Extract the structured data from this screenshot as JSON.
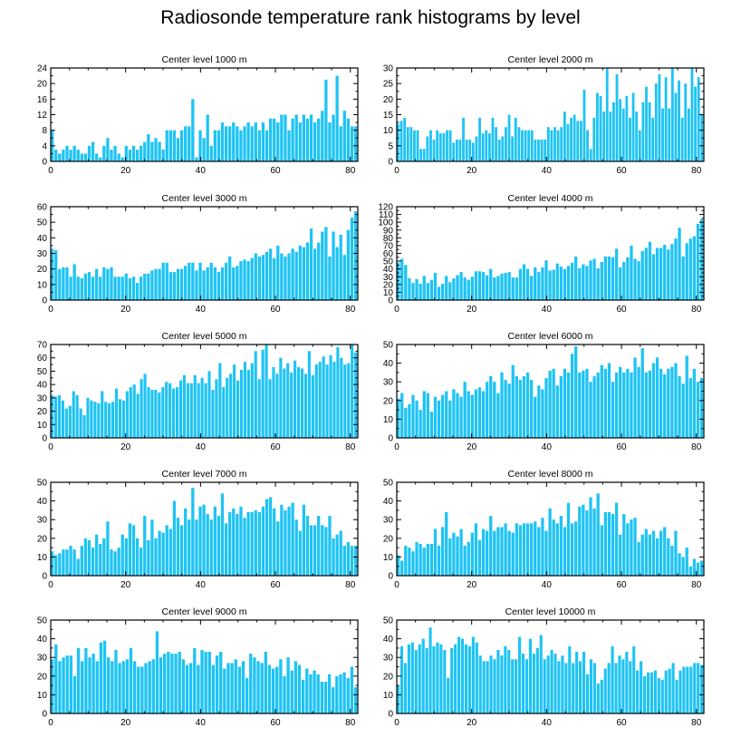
{
  "title": "Radiosonde temperature rank histograms by level",
  "colors": {
    "bar": "#1EC3F5",
    "axis": "#000000",
    "background": "#FFFFFF"
  },
  "chart_data": [
    {
      "type": "bar",
      "title": "Center level 1000 m",
      "xlim": [
        0,
        82
      ],
      "ylim": [
        0,
        24
      ],
      "xticks": [
        0,
        20,
        40,
        60,
        80
      ],
      "yticks": [
        0,
        4,
        8,
        12,
        16,
        20,
        24
      ],
      "values": [
        8,
        3,
        2,
        3,
        4,
        3,
        4,
        3,
        2,
        2,
        4,
        5,
        2,
        1,
        4,
        6,
        3,
        4,
        2,
        1,
        4,
        3,
        4,
        3,
        4,
        5,
        7,
        5,
        6,
        5,
        3,
        8,
        8,
        8,
        6,
        8,
        9,
        9,
        16,
        1,
        8,
        6,
        12,
        4,
        8,
        8,
        10,
        9,
        9,
        10,
        9,
        8,
        9,
        10,
        9,
        10,
        8,
        10,
        8,
        11,
        11,
        10,
        12,
        12,
        8,
        11,
        12,
        10,
        12,
        11,
        12,
        10,
        11,
        13,
        21,
        10,
        12,
        22,
        9,
        13,
        11,
        9,
        9
      ]
    },
    {
      "type": "bar",
      "title": "Center level 2000 m",
      "xlim": [
        0,
        82
      ],
      "ylim": [
        0,
        30
      ],
      "xticks": [
        0,
        20,
        40,
        60,
        80
      ],
      "yticks": [
        0,
        5,
        10,
        15,
        20,
        25,
        30
      ],
      "values": [
        12,
        13,
        14,
        11,
        11,
        10,
        10,
        4,
        4,
        8,
        10,
        7,
        10,
        9,
        9,
        10,
        10,
        6,
        7,
        7,
        14,
        7,
        7,
        6,
        8,
        14,
        9,
        10,
        9,
        14,
        11,
        7,
        8,
        11,
        15,
        8,
        14,
        11,
        10,
        10,
        10,
        10,
        7,
        7,
        7,
        7,
        11,
        10,
        11,
        10,
        11,
        16,
        12,
        14,
        15,
        13,
        13,
        23,
        10,
        4,
        14,
        22,
        21,
        16,
        30,
        16,
        19,
        28,
        20,
        17,
        21,
        14,
        22,
        16,
        10,
        19,
        24,
        19,
        14,
        25,
        28,
        17,
        27,
        17,
        30,
        22,
        26,
        14,
        25,
        17,
        30,
        24,
        27,
        15
      ]
    },
    {
      "type": "bar",
      "title": "Center level 3000 m",
      "xlim": [
        0,
        82
      ],
      "ylim": [
        0,
        60
      ],
      "xticks": [
        0,
        20,
        40,
        60,
        80
      ],
      "yticks": [
        0,
        10,
        20,
        30,
        40,
        50,
        60
      ],
      "values": [
        33,
        32,
        20,
        21,
        21,
        15,
        23,
        15,
        14,
        17,
        18,
        15,
        20,
        15,
        21,
        20,
        21,
        15,
        15,
        15,
        17,
        14,
        15,
        11,
        15,
        17,
        17,
        19,
        20,
        20,
        24,
        24,
        18,
        18,
        20,
        20,
        22,
        24,
        24,
        19,
        24,
        19,
        21,
        24,
        21,
        18,
        21,
        24,
        28,
        21,
        22,
        25,
        26,
        25,
        27,
        30,
        28,
        29,
        31,
        33,
        27,
        35,
        30,
        28,
        30,
        33,
        31,
        35,
        34,
        37,
        46,
        33,
        37,
        44,
        47,
        28,
        44,
        34,
        42,
        29,
        45,
        53,
        57
      ]
    },
    {
      "type": "bar",
      "title": "Center level 4000 m",
      "xlim": [
        0,
        82
      ],
      "ylim": [
        0,
        120
      ],
      "xticks": [
        0,
        20,
        40,
        60,
        80
      ],
      "yticks": [
        0,
        10,
        20,
        30,
        40,
        50,
        60,
        70,
        80,
        90,
        100,
        110,
        120
      ],
      "values": [
        48,
        53,
        45,
        28,
        22,
        27,
        21,
        31,
        22,
        26,
        35,
        17,
        21,
        31,
        23,
        28,
        32,
        36,
        29,
        26,
        30,
        37,
        37,
        36,
        32,
        40,
        29,
        31,
        34,
        35,
        36,
        29,
        29,
        40,
        46,
        40,
        31,
        42,
        36,
        42,
        51,
        38,
        39,
        47,
        43,
        40,
        44,
        48,
        56,
        41,
        46,
        44,
        51,
        53,
        41,
        49,
        56,
        56,
        55,
        66,
        42,
        49,
        55,
        70,
        53,
        50,
        63,
        67,
        75,
        59,
        67,
        67,
        71,
        65,
        72,
        79,
        93,
        56,
        73,
        79,
        82,
        98,
        104
      ]
    },
    {
      "type": "bar",
      "title": "Center level 5000 m",
      "xlim": [
        0,
        82
      ],
      "ylim": [
        0,
        70
      ],
      "xticks": [
        0,
        20,
        40,
        60,
        80
      ],
      "yticks": [
        0,
        10,
        20,
        30,
        40,
        50,
        60,
        70
      ],
      "values": [
        32,
        31,
        32,
        28,
        22,
        24,
        35,
        32,
        22,
        17,
        30,
        28,
        27,
        26,
        35,
        27,
        26,
        27,
        37,
        29,
        28,
        35,
        38,
        40,
        33,
        44,
        48,
        38,
        36,
        36,
        34,
        38,
        42,
        41,
        37,
        38,
        43,
        47,
        41,
        41,
        47,
        41,
        45,
        41,
        50,
        36,
        44,
        56,
        38,
        45,
        48,
        55,
        43,
        51,
        57,
        51,
        56,
        65,
        44,
        66,
        70,
        44,
        53,
        48,
        60,
        52,
        56,
        49,
        58,
        53,
        52,
        48,
        65,
        47,
        55,
        57,
        61,
        55,
        62,
        57,
        68,
        60,
        55,
        56,
        70,
        64
      ]
    },
    {
      "type": "bar",
      "title": "Center level 6000 m",
      "xlim": [
        0,
        82
      ],
      "ylim": [
        0,
        50
      ],
      "xticks": [
        0,
        20,
        40,
        60,
        80
      ],
      "yticks": [
        0,
        10,
        20,
        30,
        40,
        50
      ],
      "values": [
        21,
        24,
        16,
        18,
        23,
        20,
        15,
        25,
        24,
        14,
        22,
        20,
        23,
        25,
        20,
        26,
        24,
        22,
        30,
        25,
        23,
        26,
        27,
        25,
        30,
        33,
        30,
        24,
        35,
        31,
        29,
        39,
        33,
        31,
        33,
        35,
        31,
        22,
        28,
        26,
        32,
        36,
        37,
        28,
        33,
        37,
        35,
        45,
        49,
        35,
        36,
        37,
        30,
        33,
        35,
        39,
        37,
        40,
        30,
        35,
        38,
        35,
        37,
        35,
        43,
        38,
        48,
        35,
        36,
        40,
        43,
        37,
        34,
        37,
        38,
        40,
        33,
        29,
        44,
        32,
        37,
        30,
        32
      ]
    },
    {
      "type": "bar",
      "title": "Center level 7000 m",
      "xlim": [
        0,
        82
      ],
      "ylim": [
        0,
        50
      ],
      "xticks": [
        0,
        20,
        40,
        60,
        80
      ],
      "yticks": [
        0,
        10,
        20,
        30,
        40,
        50
      ],
      "values": [
        13,
        11,
        12,
        14,
        14,
        16,
        14,
        9,
        16,
        20,
        19,
        15,
        22,
        17,
        20,
        29,
        14,
        13,
        15,
        22,
        20,
        28,
        27,
        20,
        15,
        32,
        19,
        30,
        20,
        24,
        23,
        27,
        25,
        40,
        31,
        27,
        36,
        30,
        47,
        30,
        37,
        38,
        33,
        30,
        37,
        32,
        44,
        28,
        34,
        36,
        33,
        37,
        31,
        34,
        34,
        35,
        34,
        37,
        41,
        42,
        36,
        29,
        38,
        35,
        37,
        39,
        30,
        24,
        38,
        32,
        27,
        27,
        32,
        27,
        26,
        32,
        20,
        22,
        24,
        16,
        18,
        16,
        16
      ]
    },
    {
      "type": "bar",
      "title": "Center level 8000 m",
      "xlim": [
        0,
        82
      ],
      "ylim": [
        0,
        50
      ],
      "xticks": [
        0,
        20,
        40,
        60,
        80
      ],
      "yticks": [
        0,
        10,
        20,
        30,
        40,
        50
      ],
      "values": [
        11,
        8,
        16,
        15,
        13,
        18,
        17,
        15,
        17,
        17,
        25,
        16,
        26,
        34,
        20,
        23,
        21,
        25,
        16,
        18,
        23,
        28,
        19,
        25,
        24,
        32,
        24,
        26,
        26,
        28,
        24,
        23,
        28,
        27,
        28,
        28,
        28,
        29,
        26,
        31,
        24,
        36,
        30,
        28,
        32,
        26,
        39,
        28,
        29,
        37,
        38,
        35,
        42,
        36,
        44,
        27,
        34,
        34,
        33,
        39,
        22,
        33,
        28,
        30,
        31,
        18,
        22,
        25,
        22,
        24,
        20,
        24,
        26,
        20,
        16,
        24,
        12,
        10,
        15,
        5,
        9,
        7,
        8
      ]
    },
    {
      "type": "bar",
      "title": "Center level 9000 m",
      "xlim": [
        0,
        82
      ],
      "ylim": [
        0,
        50
      ],
      "xticks": [
        0,
        20,
        40,
        60,
        80
      ],
      "yticks": [
        0,
        10,
        20,
        30,
        40,
        50
      ],
      "values": [
        29,
        37,
        28,
        30,
        31,
        31,
        20,
        35,
        28,
        35,
        30,
        32,
        28,
        38,
        39,
        30,
        28,
        34,
        27,
        28,
        29,
        35,
        28,
        25,
        25,
        27,
        28,
        29,
        44,
        30,
        32,
        33,
        32,
        32,
        33,
        29,
        26,
        27,
        35,
        26,
        34,
        33,
        33,
        26,
        31,
        33,
        24,
        27,
        27,
        29,
        25,
        28,
        19,
        32,
        30,
        28,
        27,
        33,
        26,
        24,
        25,
        29,
        20,
        30,
        23,
        28,
        26,
        18,
        24,
        21,
        23,
        21,
        17,
        17,
        21,
        14,
        20,
        21,
        22,
        19,
        25,
        14
      ]
    },
    {
      "type": "bar",
      "title": "Center level 10000 m",
      "xlim": [
        0,
        82
      ],
      "ylim": [
        0,
        50
      ],
      "xticks": [
        0,
        20,
        40,
        60,
        80
      ],
      "yticks": [
        0,
        10,
        20,
        30,
        40,
        50
      ],
      "values": [
        15,
        36,
        27,
        37,
        38,
        34,
        37,
        40,
        35,
        46,
        36,
        38,
        37,
        34,
        19,
        35,
        37,
        41,
        40,
        37,
        36,
        41,
        38,
        31,
        28,
        28,
        31,
        29,
        34,
        31,
        36,
        34,
        29,
        29,
        41,
        32,
        29,
        40,
        32,
        35,
        42,
        29,
        31,
        34,
        32,
        28,
        31,
        27,
        36,
        27,
        33,
        28,
        33,
        21,
        29,
        27,
        16,
        18,
        24,
        27,
        36,
        27,
        31,
        29,
        33,
        28,
        36,
        23,
        28,
        20,
        22,
        22,
        23,
        19,
        18,
        23,
        24,
        27,
        18,
        23,
        25,
        25,
        25,
        27,
        27,
        26
      ]
    }
  ]
}
